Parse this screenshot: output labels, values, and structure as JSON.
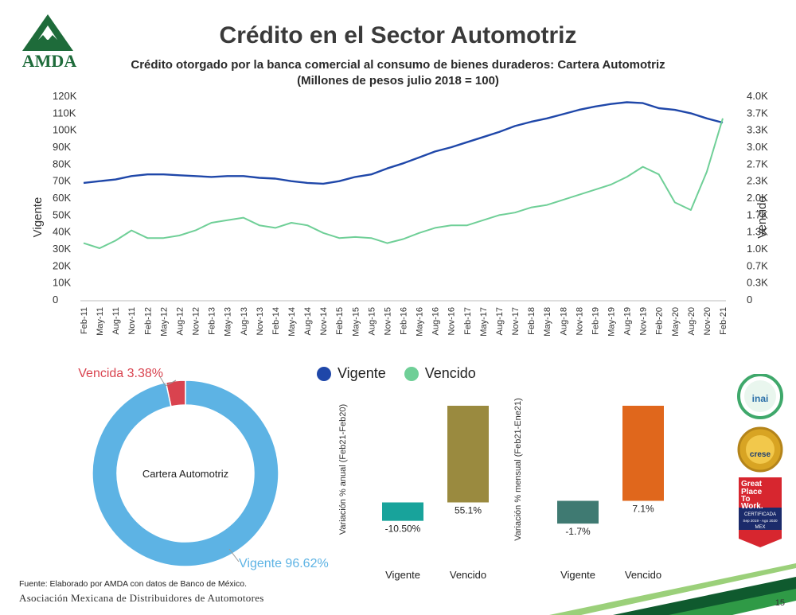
{
  "header": {
    "logo_text": "AMDA",
    "title": "Crédito en el Sector Automotriz",
    "subtitle_line1": "Crédito otorgado por la banca comercial al consumo de bienes duraderos: Cartera Automotriz",
    "subtitle_line2": "(Millones de pesos julio 2018 = 100)"
  },
  "colors": {
    "vigente": "#1f47a9",
    "vencido": "#6fcf97",
    "donut_vigente": "#5db3e4",
    "donut_vencida": "#d9434f",
    "bar_vigente_anual": "#18a39b",
    "bar_vencido_anual": "#9a8a3f",
    "bar_vigente_mensual": "#3f7a72",
    "bar_vencido_mensual": "#e0671c"
  },
  "chart_data": [
    {
      "type": "line",
      "ylabel": "Vigente",
      "y2label": "Vencido",
      "ylim": [
        0,
        120000
      ],
      "y2lim": [
        0,
        4.0
      ],
      "y_ticks": [
        "0",
        "10K",
        "20K",
        "30K",
        "40K",
        "50K",
        "60K",
        "70K",
        "80K",
        "90K",
        "100K",
        "110K",
        "120K"
      ],
      "y2_ticks": [
        "0",
        "0.3K",
        "0.7K",
        "1.0K",
        "1.3K",
        "1.7K",
        "2.0K",
        "2.3K",
        "2.7K",
        "3.0K",
        "3.3K",
        "3.7K",
        "4.0K"
      ],
      "x_tick_labels": [
        "Feb-11",
        "May-11",
        "Aug-11",
        "Nov-11",
        "Feb-12",
        "May-12",
        "Aug-12",
        "Nov-12",
        "Feb-13",
        "May-13",
        "Aug-13",
        "Nov-13",
        "Feb-14",
        "May-14",
        "Aug-14",
        "Nov-14",
        "Feb-15",
        "May-15",
        "Aug-15",
        "Nov-15",
        "Feb-16",
        "May-16",
        "Aug-16",
        "Nov-16",
        "Feb-17",
        "May-17",
        "Aug-17",
        "Nov-17",
        "Feb-18",
        "May-18",
        "Aug-18",
        "Nov-18",
        "Feb-19",
        "May-19",
        "Aug-19",
        "Nov-19",
        "Feb-20",
        "May-20",
        "Aug-20",
        "Nov-20",
        "Feb-21"
      ],
      "series": [
        {
          "name": "Vigente",
          "axis": "left",
          "values": [
            68500,
            69500,
            70500,
            72500,
            73500,
            73500,
            73000,
            72500,
            72000,
            72500,
            72500,
            71500,
            71000,
            69500,
            68500,
            68000,
            69500,
            72000,
            73500,
            77000,
            80000,
            83500,
            87000,
            89500,
            92500,
            95500,
            98500,
            102000,
            104500,
            106500,
            109000,
            111500,
            113500,
            115000,
            116000,
            115500,
            112500,
            111500,
            109500,
            106500,
            104000
          ]
        },
        {
          "name": "Vencido",
          "axis": "right",
          "values": [
            1.1,
            1.0,
            1.15,
            1.35,
            1.2,
            1.2,
            1.25,
            1.35,
            1.5,
            1.55,
            1.6,
            1.45,
            1.4,
            1.5,
            1.45,
            1.3,
            1.2,
            1.22,
            1.2,
            1.1,
            1.18,
            1.3,
            1.4,
            1.45,
            1.45,
            1.55,
            1.65,
            1.7,
            1.8,
            1.85,
            1.95,
            2.05,
            2.15,
            2.25,
            2.4,
            2.6,
            2.45,
            1.9,
            1.75,
            2.5,
            3.55
          ]
        }
      ]
    },
    {
      "type": "pie",
      "center_label": "Cartera Automotriz",
      "slices": [
        {
          "name": "Vigente",
          "value": 96.62,
          "label": "Vigente 96.62%"
        },
        {
          "name": "Vencida",
          "value": 3.38,
          "label": "Vencida 3.38%"
        }
      ]
    },
    {
      "type": "bar",
      "ylabel": "Variación % anual (Feb21-Feb20)",
      "categories": [
        "Vigente",
        "Vencido"
      ],
      "values": [
        -10.5,
        55.1
      ],
      "value_labels": [
        "-10.50%",
        "55.1%"
      ]
    },
    {
      "type": "bar",
      "ylabel": "Variación % mensual (Feb21-Ene21)",
      "categories": [
        "Vigente",
        "Vencido"
      ],
      "values": [
        -1.7,
        7.1
      ],
      "value_labels": [
        "-1.7%",
        "7.1%"
      ]
    }
  ],
  "badges": [
    {
      "name": "inai",
      "text": "inai"
    },
    {
      "name": "crese",
      "text": "crese"
    },
    {
      "name": "great-place-to-work",
      "text_lines": [
        "Great",
        "Place",
        "To",
        "Work."
      ],
      "sub1": "CERTIFICADA",
      "sub2": "Sep 2019 - Ago 2020",
      "sub3": "MEX"
    }
  ],
  "footer": {
    "source": "Fuente: Elaborado por AMDA con datos de Banco de México.",
    "org": "Asociación Mexicana de Distribuidores de Automotores",
    "page_number": "15"
  }
}
